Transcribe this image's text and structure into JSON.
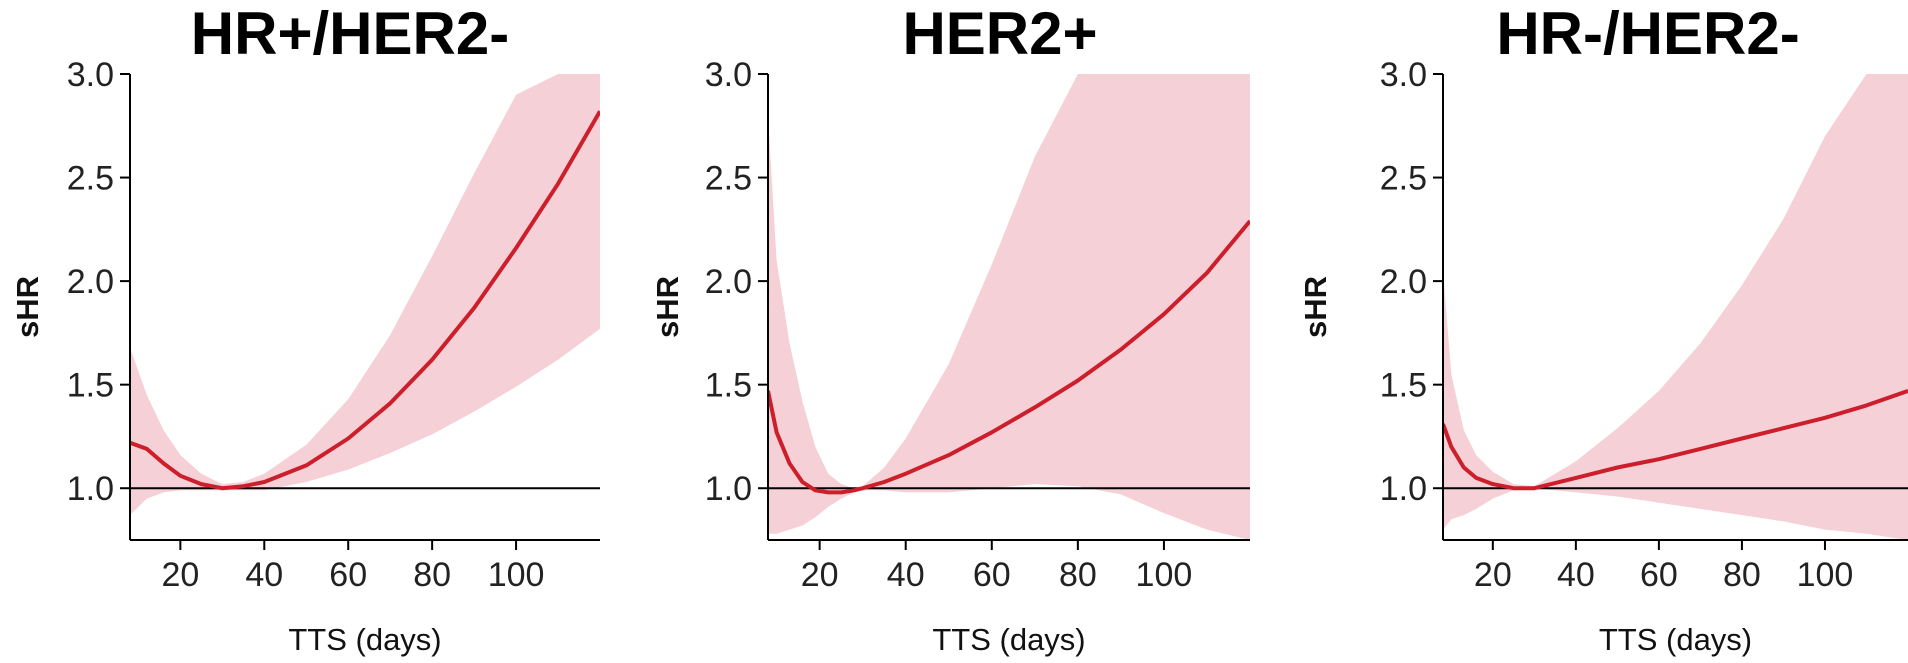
{
  "colors": {
    "line": "#cc1f2b",
    "band": "#f5d0d6",
    "axis": "#000000",
    "reference": "#000000"
  },
  "chart_data": [
    {
      "type": "line",
      "title": "HR+/HER2-",
      "xlabel": "TTS (days)",
      "ylabel": "sHR",
      "xlim": [
        8,
        120
      ],
      "ylim": [
        0.75,
        3.0
      ],
      "xticks": [
        20,
        40,
        60,
        80,
        100
      ],
      "yticks": [
        1.0,
        1.5,
        2.0,
        2.5,
        3.0
      ],
      "ytick_labels": [
        "1.0",
        "1.5",
        "2.0",
        "2.5",
        "3.0"
      ],
      "reference_line": 1.0,
      "grid": false,
      "series": [
        {
          "x": [
            8,
            12,
            16,
            20,
            25,
            30,
            35,
            40,
            50,
            60,
            70,
            80,
            90,
            100,
            110,
            120
          ],
          "y": [
            1.22,
            1.19,
            1.12,
            1.06,
            1.02,
            1.0,
            1.01,
            1.03,
            1.11,
            1.24,
            1.41,
            1.62,
            1.87,
            2.16,
            2.47,
            2.82
          ],
          "lower": [
            0.87,
            0.95,
            0.98,
            0.99,
            0.99,
            0.99,
            0.99,
            0.99,
            1.03,
            1.09,
            1.17,
            1.26,
            1.37,
            1.49,
            1.62,
            1.77
          ],
          "upper": [
            1.68,
            1.45,
            1.28,
            1.16,
            1.07,
            1.02,
            1.03,
            1.07,
            1.21,
            1.43,
            1.74,
            2.12,
            2.52,
            2.9,
            3.0,
            3.0
          ]
        }
      ]
    },
    {
      "type": "line",
      "title": "HER2+",
      "xlabel": "TTS (days)",
      "ylabel": "sHR",
      "xlim": [
        8,
        120
      ],
      "ylim": [
        0.75,
        3.0
      ],
      "xticks": [
        20,
        40,
        60,
        80,
        100
      ],
      "yticks": [
        1.0,
        1.5,
        2.0,
        2.5,
        3.0
      ],
      "ytick_labels": [
        "1.0",
        "1.5",
        "2.0",
        "2.5",
        "3.0"
      ],
      "reference_line": 1.0,
      "grid": false,
      "series": [
        {
          "x": [
            8,
            10,
            13,
            16,
            19,
            22,
            25,
            28,
            30,
            35,
            40,
            50,
            60,
            70,
            80,
            90,
            100,
            110,
            120
          ],
          "y": [
            1.47,
            1.27,
            1.12,
            1.03,
            0.99,
            0.98,
            0.98,
            0.99,
            1.0,
            1.03,
            1.07,
            1.16,
            1.27,
            1.39,
            1.52,
            1.67,
            1.84,
            2.04,
            2.29
          ],
          "lower": [
            0.78,
            0.78,
            0.8,
            0.82,
            0.86,
            0.91,
            0.95,
            0.98,
            0.99,
            0.99,
            0.98,
            0.98,
            1.0,
            1.02,
            1.01,
            0.97,
            0.88,
            0.8,
            0.75
          ],
          "upper": [
            2.8,
            2.1,
            1.7,
            1.42,
            1.2,
            1.07,
            1.02,
            1.0,
            1.01,
            1.1,
            1.24,
            1.6,
            2.08,
            2.6,
            3.0,
            3.0,
            3.0,
            3.0,
            3.0
          ]
        }
      ]
    },
    {
      "type": "line",
      "title": "HR-/HER2-",
      "xlabel": "TTS (days)",
      "ylabel": "sHR",
      "xlim": [
        8,
        120
      ],
      "ylim": [
        0.75,
        3.0
      ],
      "xticks": [
        20,
        40,
        60,
        80,
        100
      ],
      "yticks": [
        1.0,
        1.5,
        2.0,
        2.5,
        3.0
      ],
      "ytick_labels": [
        "1.0",
        "1.5",
        "2.0",
        "2.5",
        "3.0"
      ],
      "reference_line": 1.0,
      "grid": false,
      "series": [
        {
          "x": [
            8,
            10,
            13,
            16,
            20,
            25,
            30,
            40,
            50,
            60,
            70,
            80,
            90,
            100,
            110,
            120
          ],
          "y": [
            1.31,
            1.2,
            1.1,
            1.05,
            1.02,
            1.0,
            1.0,
            1.05,
            1.1,
            1.14,
            1.19,
            1.24,
            1.29,
            1.34,
            1.4,
            1.47
          ],
          "lower": [
            0.8,
            0.85,
            0.87,
            0.9,
            0.95,
            0.99,
            1.0,
            0.98,
            0.96,
            0.93,
            0.9,
            0.87,
            0.84,
            0.8,
            0.78,
            0.75
          ],
          "upper": [
            2.05,
            1.55,
            1.28,
            1.16,
            1.08,
            1.02,
            1.01,
            1.13,
            1.29,
            1.47,
            1.7,
            1.98,
            2.3,
            2.7,
            3.0,
            3.0
          ]
        }
      ]
    }
  ]
}
